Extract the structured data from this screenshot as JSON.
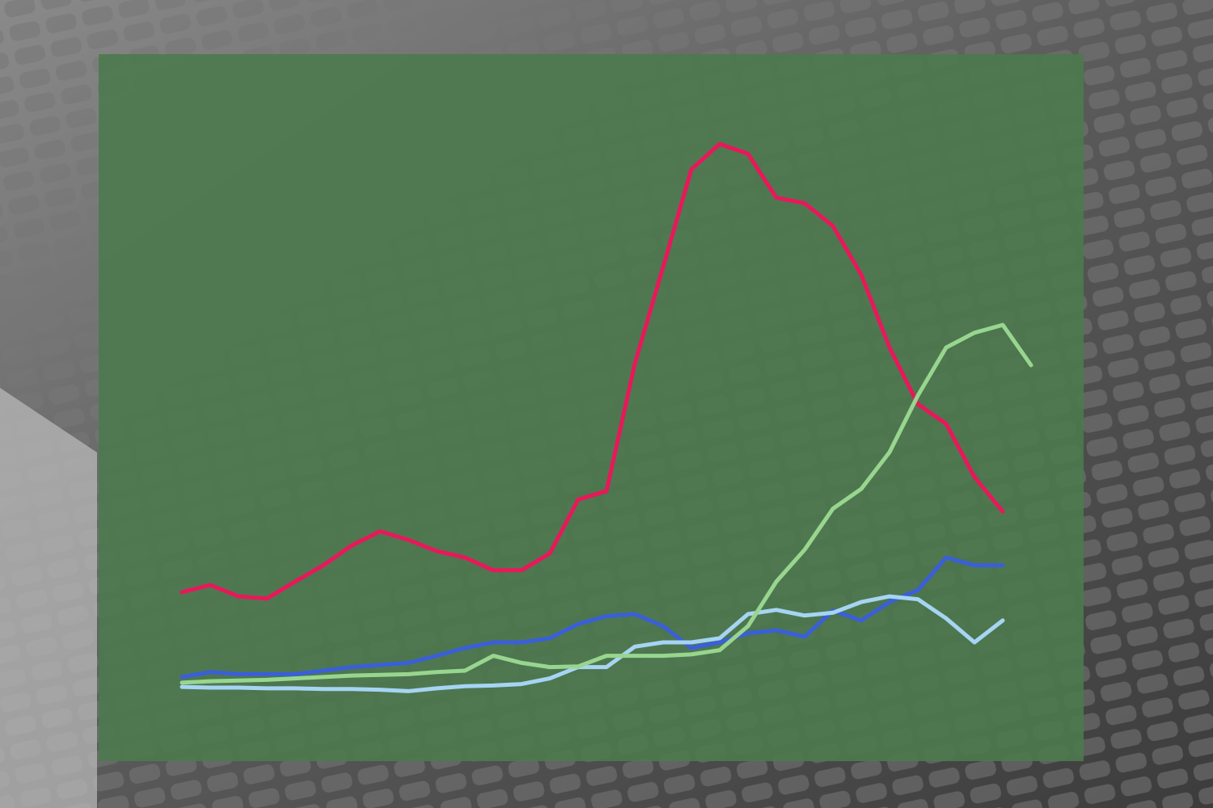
{
  "chart_data": {
    "type": "line",
    "categories": [
      null,
      null,
      null,
      null,
      null,
      null,
      null,
      null,
      null,
      null,
      null,
      null,
      null,
      null,
      null,
      null,
      null,
      null,
      null,
      null,
      null,
      null,
      null,
      null,
      null,
      null,
      null,
      null,
      null,
      null,
      null
    ],
    "ylim": [
      0,
      100
    ],
    "series": [
      {
        "color": "#e8185a",
        "values": [
          23.9,
          24.9,
          23.3,
          23.0,
          25.4,
          27.7,
          30.5,
          32.5,
          31.3,
          29.7,
          28.8,
          27.0,
          27.0,
          29.4,
          37.0,
          38.2,
          56.2,
          69.9,
          83.7,
          87.3,
          85.9,
          79.7,
          78.9,
          75.7,
          68.8,
          58.5,
          50.5,
          47.7,
          40.2,
          35.3,
          null
        ]
      },
      {
        "color": "#3a5fd8",
        "values": [
          11.9,
          12.6,
          12.3,
          12.3,
          12.3,
          12.8,
          13.3,
          13.6,
          13.9,
          14.9,
          16.0,
          16.8,
          16.8,
          17.4,
          19.4,
          20.5,
          20.8,
          19.1,
          16.0,
          16.8,
          18.1,
          18.5,
          17.6,
          21.3,
          19.9,
          22.5,
          24.2,
          28.8,
          27.7,
          27.7,
          null
        ]
      },
      {
        "color": "#a6d4f2",
        "values": [
          10.5,
          10.4,
          10.4,
          10.3,
          10.3,
          10.2,
          10.2,
          10.1,
          9.9,
          10.3,
          10.6,
          10.7,
          10.9,
          11.7,
          13.3,
          13.3,
          16.2,
          16.8,
          16.8,
          17.4,
          20.8,
          21.4,
          20.6,
          21.0,
          22.5,
          23.3,
          22.9,
          20.2,
          16.8,
          19.9,
          null
        ]
      },
      {
        "color": "#98d68f",
        "values": [
          11.1,
          11.3,
          11.4,
          11.5,
          11.7,
          11.9,
          12.1,
          12.2,
          12.3,
          12.6,
          12.8,
          14.9,
          13.9,
          13.3,
          13.4,
          14.9,
          14.9,
          14.9,
          15.1,
          15.7,
          19.1,
          25.4,
          29.9,
          35.7,
          38.5,
          43.7,
          51.7,
          58.5,
          60.6,
          61.7,
          56.0
        ]
      }
    ]
  }
}
